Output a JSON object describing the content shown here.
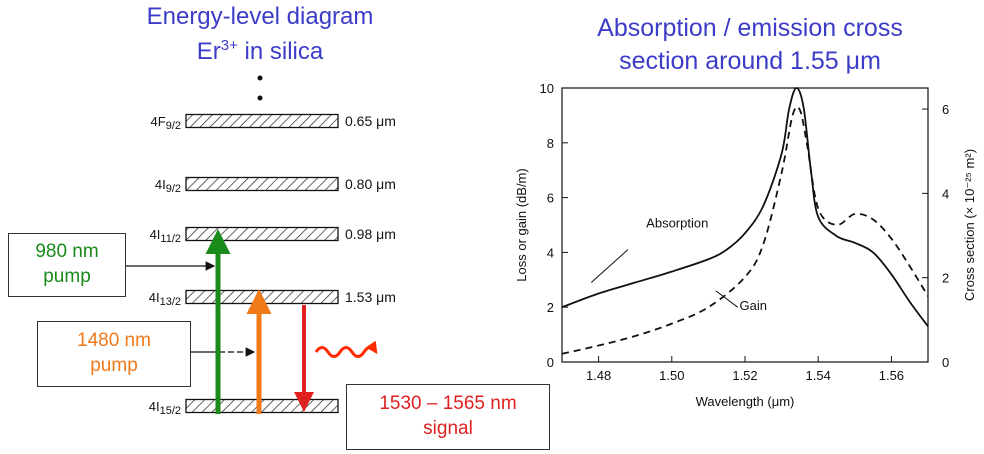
{
  "left_title": {
    "line1": "Energy-level diagram",
    "line2_base": "Er",
    "line2_sup": "3+",
    "line2_rest": " in silica"
  },
  "right_title": {
    "line1": "Absorption / emission cross",
    "line2": "section around 1.55 μm"
  },
  "levels": [
    {
      "name": "4F",
      "sub": "9/2",
      "wavelength": "0.65 μm"
    },
    {
      "name": "4I",
      "sub": "9/2",
      "wavelength": "0.80 μm"
    },
    {
      "name": "4I",
      "sub": "11/2",
      "wavelength": "0.98 μm"
    },
    {
      "name": "4I",
      "sub": "13/2",
      "wavelength": "1.53 μm"
    },
    {
      "name": "4I",
      "sub": "15/2",
      "wavelength": ""
    }
  ],
  "boxes": {
    "pump980": {
      "line1": "980 nm",
      "line2": "pump"
    },
    "pump1480": {
      "line1": "1480 nm",
      "line2": "pump"
    },
    "signal": {
      "line1": "1530 – 1565 nm",
      "line2": "signal"
    }
  },
  "colors": {
    "title": "#3c3cc8",
    "pump980": "#1a8a1a",
    "pump1480": "#f07a1a",
    "signal": "#e02020"
  },
  "chart_data": {
    "type": "line",
    "xlabel": "Wavelength (μm)",
    "ylabel": "Loss or gain (dB/m)",
    "y2label": "Cross section (× 10⁻²⁵ m²)",
    "xlim": [
      1.47,
      1.57
    ],
    "ylim": [
      0,
      10
    ],
    "y2lim": [
      0,
      6.5
    ],
    "xticks": [
      "1.48",
      "1.50",
      "1.52",
      "1.54",
      "1.56"
    ],
    "yticks": [
      "0",
      "2",
      "4",
      "6",
      "8",
      "10"
    ],
    "y2ticks": [
      "0",
      "2",
      "4",
      "6"
    ],
    "annotations": [
      "Absorption",
      "Gain"
    ],
    "series": [
      {
        "name": "Absorption",
        "style": "solid",
        "x": [
          1.47,
          1.48,
          1.49,
          1.5,
          1.51,
          1.515,
          1.52,
          1.525,
          1.53,
          1.532,
          1.534,
          1.536,
          1.538,
          1.54,
          1.545,
          1.55,
          1.555,
          1.56,
          1.565,
          1.57
        ],
        "y": [
          2.0,
          2.5,
          2.9,
          3.3,
          3.75,
          4.1,
          4.7,
          5.7,
          7.6,
          9.2,
          10.0,
          9.3,
          7.0,
          5.3,
          4.6,
          4.35,
          4.0,
          3.2,
          2.2,
          1.3
        ]
      },
      {
        "name": "Gain",
        "style": "dashed",
        "x": [
          1.47,
          1.48,
          1.49,
          1.5,
          1.51,
          1.52,
          1.525,
          1.53,
          1.533,
          1.535,
          1.537,
          1.54,
          1.545,
          1.55,
          1.555,
          1.56,
          1.565,
          1.57
        ],
        "y": [
          0.3,
          0.6,
          0.95,
          1.4,
          2.0,
          3.1,
          4.3,
          6.9,
          9.0,
          9.2,
          7.9,
          5.6,
          5.0,
          5.4,
          5.2,
          4.5,
          3.5,
          2.4
        ]
      }
    ]
  }
}
